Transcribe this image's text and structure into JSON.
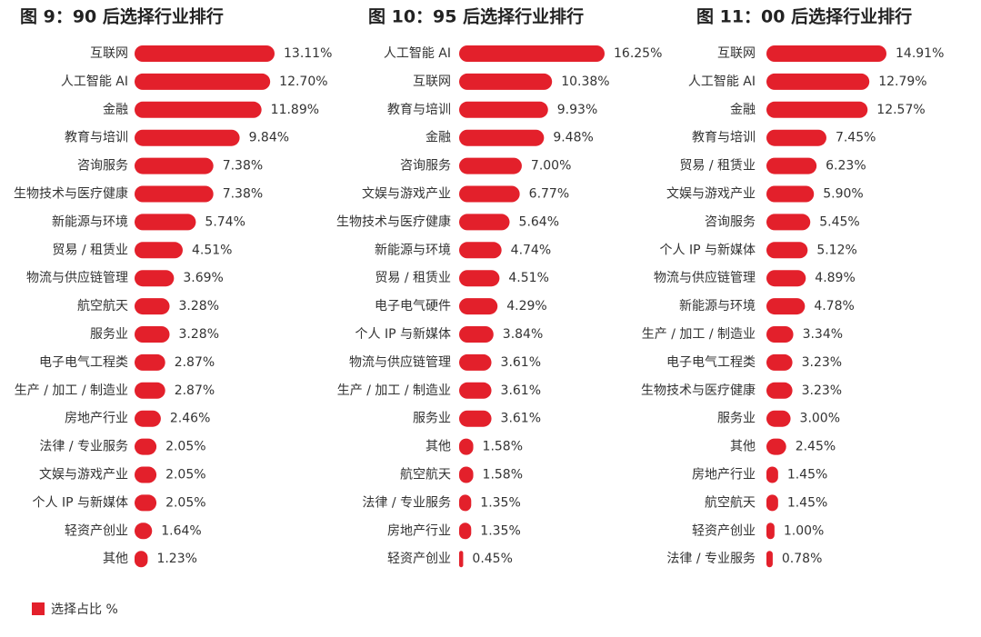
{
  "chart_data": [
    {
      "type": "bar",
      "orientation": "horizontal",
      "title": "图 9：90 后选择行业排行",
      "color": "#e3202b",
      "categories": [
        "互联网",
        "人工智能 AI",
        "金融",
        "教育与培训",
        "咨询服务",
        "生物技术与医疗健康",
        "新能源与环境",
        "贸易 / 租赁业",
        "物流与供应链管理",
        "航空航天",
        "服务业",
        "电子电气工程类",
        "生产 / 加工 / 制造业",
        "房地产行业",
        "法律 / 专业服务",
        "文娱与游戏产业",
        "个人 IP 与新媒体",
        "轻资产创业",
        "其他"
      ],
      "values": [
        13.11,
        12.7,
        11.89,
        9.84,
        7.38,
        7.38,
        5.74,
        4.51,
        3.69,
        3.28,
        3.28,
        2.87,
        2.87,
        2.46,
        2.05,
        2.05,
        2.05,
        1.64,
        1.23
      ],
      "value_labels": [
        "13.11%",
        "12.70%",
        "11.89%",
        "9.84%",
        "7.38%",
        "7.38%",
        "5.74%",
        "4.51%",
        "3.69%",
        "3.28%",
        "3.28%",
        "2.87%",
        "2.87%",
        "2.46%",
        "2.05%",
        "2.05%",
        "2.05%",
        "1.64%",
        "1.23%"
      ]
    },
    {
      "type": "bar",
      "orientation": "horizontal",
      "title": "图 10：95 后选择行业排行",
      "color": "#e3202b",
      "categories": [
        "人工智能 AI",
        "互联网",
        "教育与培训",
        "金融",
        "咨询服务",
        "文娱与游戏产业",
        "生物技术与医疗健康",
        "新能源与环境",
        "贸易 / 租赁业",
        "电子电气硬件",
        "个人 IP 与新媒体",
        "物流与供应链管理",
        "生产 / 加工 / 制造业",
        "服务业",
        "其他",
        "航空航天",
        "法律 / 专业服务",
        "房地产行业",
        "轻资产创业"
      ],
      "values": [
        16.25,
        10.38,
        9.93,
        9.48,
        7.0,
        6.77,
        5.64,
        4.74,
        4.51,
        4.29,
        3.84,
        3.61,
        3.61,
        3.61,
        1.58,
        1.58,
        1.35,
        1.35,
        0.45
      ],
      "value_labels": [
        "16.25%",
        "10.38%",
        "9.93%",
        "9.48%",
        "7.00%",
        "6.77%",
        "5.64%",
        "4.74%",
        "4.51%",
        "4.29%",
        "3.84%",
        "3.61%",
        "3.61%",
        "3.61%",
        "1.58%",
        "1.58%",
        "1.35%",
        "1.35%",
        "0.45%"
      ]
    },
    {
      "type": "bar",
      "orientation": "horizontal",
      "title": "图 11：00 后选择行业排行",
      "color": "#e3202b",
      "categories": [
        "互联网",
        "人工智能 AI",
        "金融",
        "教育与培训",
        "贸易 / 租赁业",
        "文娱与游戏产业",
        "咨询服务",
        "个人 IP 与新媒体",
        "物流与供应链管理",
        "新能源与环境",
        "生产 / 加工 / 制造业",
        "电子电气工程类",
        "生物技术与医疗健康",
        "服务业",
        "其他",
        "房地产行业",
        "航空航天",
        "轻资产创业",
        "法律 / 专业服务"
      ],
      "values": [
        14.91,
        12.79,
        12.57,
        7.45,
        6.23,
        5.9,
        5.45,
        5.12,
        4.89,
        4.78,
        3.34,
        3.23,
        3.23,
        3.0,
        2.45,
        1.45,
        1.45,
        1.0,
        0.78
      ],
      "value_labels": [
        "14.91%",
        "12.79%",
        "12.57%",
        "7.45%",
        "6.23%",
        "5.90%",
        "5.45%",
        "5.12%",
        "4.89%",
        "4.78%",
        "3.34%",
        "3.23%",
        "3.23%",
        "3.00%",
        "2.45%",
        "1.45%",
        "1.45%",
        "1.00%",
        "0.78%"
      ]
    }
  ],
  "legend": {
    "label": "选择占比 %",
    "color": "#e3202b"
  }
}
